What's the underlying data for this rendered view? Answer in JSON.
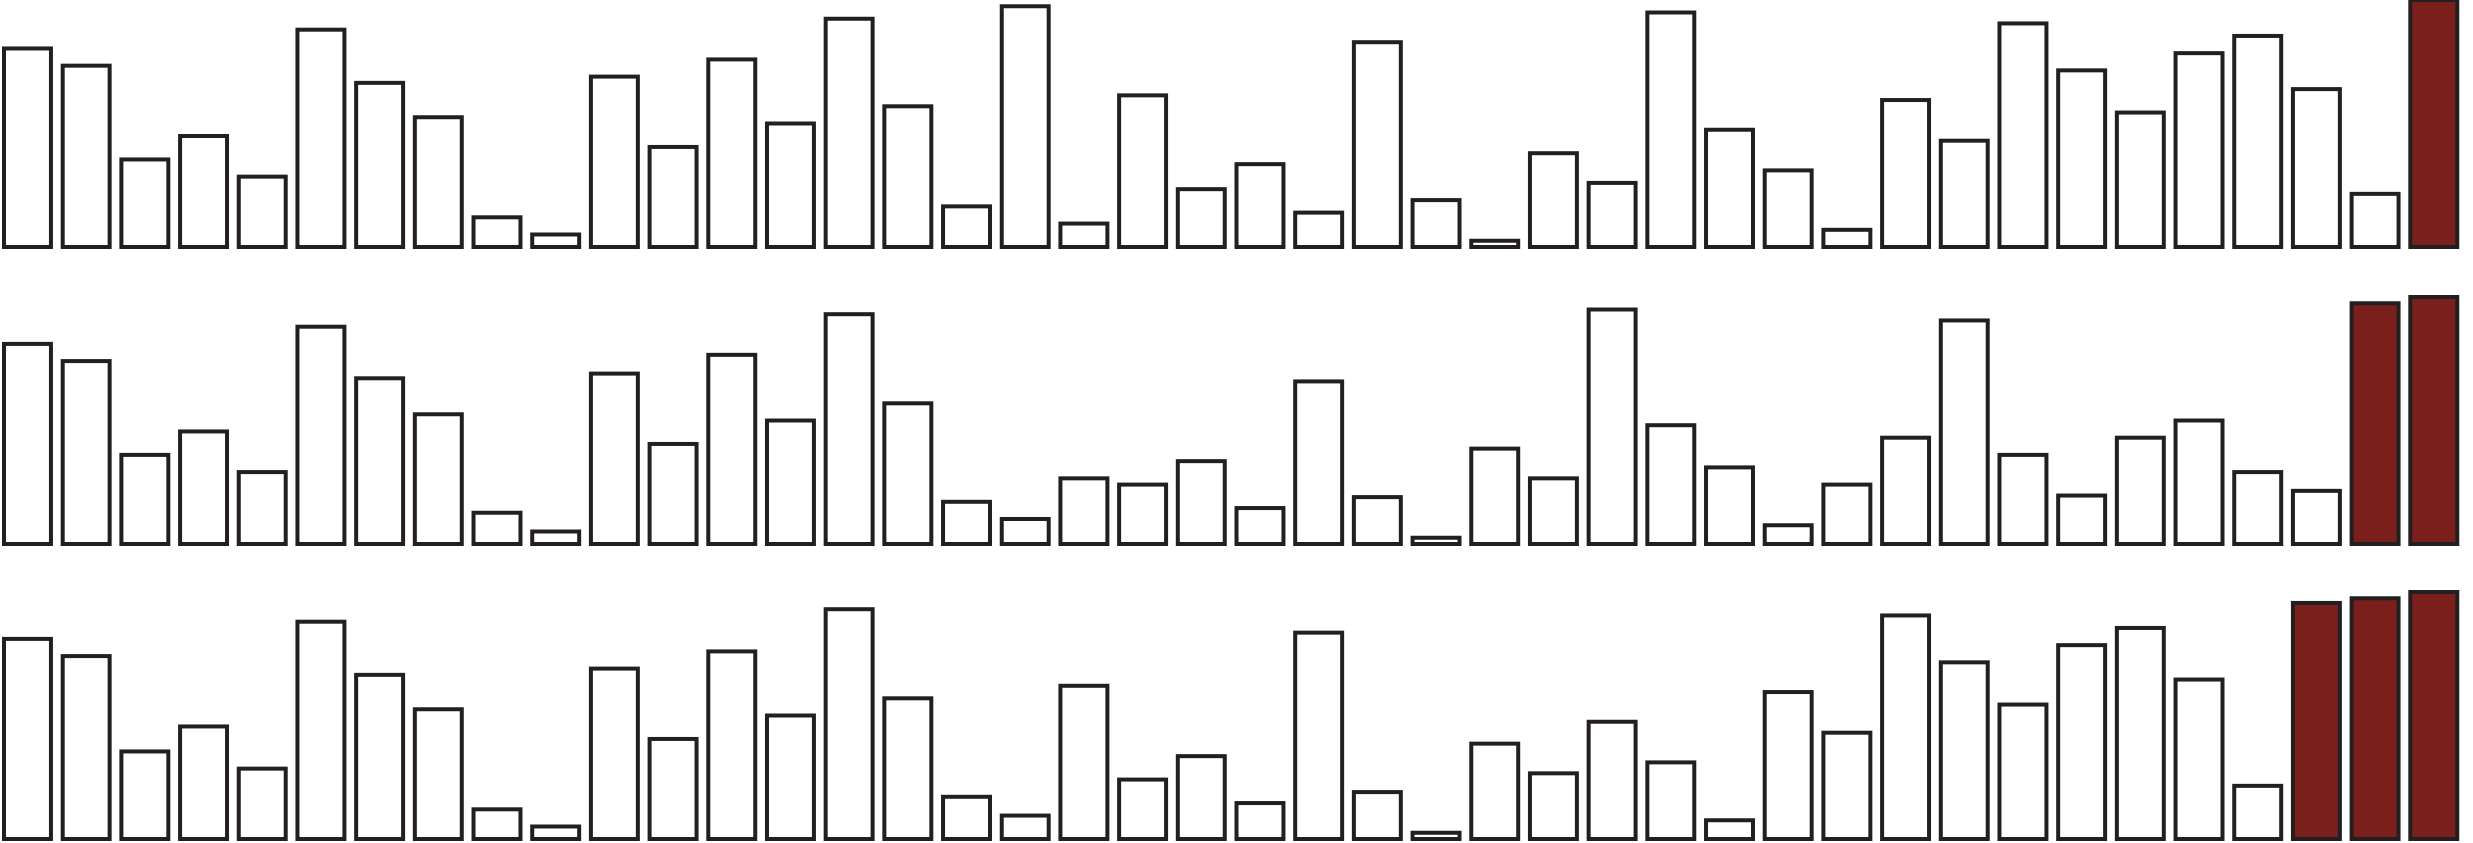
{
  "chart_data": [
    {
      "type": "bar",
      "values": [
        127,
        116,
        56,
        71,
        45,
        139,
        105,
        83,
        19,
        8,
        109,
        64,
        120,
        79,
        146,
        90,
        26,
        154,
        15,
        97,
        37,
        53,
        22,
        131,
        30,
        4,
        60,
        41,
        150,
        75,
        49,
        11,
        94,
        68,
        143,
        113,
        86,
        124,
        135,
        101,
        34,
        158
      ],
      "colors": [
        "#ffffff",
        "#ffffff",
        "#ffffff",
        "#ffffff",
        "#ffffff",
        "#ffffff",
        "#ffffff",
        "#ffffff",
        "#ffffff",
        "#ffffff",
        "#ffffff",
        "#ffffff",
        "#ffffff",
        "#ffffff",
        "#ffffff",
        "#ffffff",
        "#ffffff",
        "#ffffff",
        "#ffffff",
        "#ffffff",
        "#ffffff",
        "#ffffff",
        "#ffffff",
        "#ffffff",
        "#ffffff",
        "#ffffff",
        "#ffffff",
        "#ffffff",
        "#ffffff",
        "#ffffff",
        "#ffffff",
        "#ffffff",
        "#ffffff",
        "#ffffff",
        "#ffffff",
        "#ffffff",
        "#ffffff",
        "#ffffff",
        "#ffffff",
        "#ffffff",
        "#ffffff",
        "#7a1f1c"
      ],
      "ylim": [
        0,
        158
      ]
    },
    {
      "type": "bar",
      "values": [
        128,
        117,
        57,
        72,
        46,
        139,
        106,
        83,
        20,
        8,
        109,
        64,
        121,
        79,
        147,
        90,
        27,
        16,
        42,
        38,
        53,
        23,
        104,
        30,
        4,
        61,
        42,
        150,
        76,
        49,
        12,
        38,
        68,
        143,
        57,
        31,
        68,
        79,
        46,
        34,
        154,
        158
      ],
      "colors": [
        "#ffffff",
        "#ffffff",
        "#ffffff",
        "#ffffff",
        "#ffffff",
        "#ffffff",
        "#ffffff",
        "#ffffff",
        "#ffffff",
        "#ffffff",
        "#ffffff",
        "#ffffff",
        "#ffffff",
        "#ffffff",
        "#ffffff",
        "#ffffff",
        "#ffffff",
        "#ffffff",
        "#ffffff",
        "#ffffff",
        "#ffffff",
        "#ffffff",
        "#ffffff",
        "#ffffff",
        "#ffffff",
        "#ffffff",
        "#ffffff",
        "#ffffff",
        "#ffffff",
        "#ffffff",
        "#ffffff",
        "#ffffff",
        "#ffffff",
        "#ffffff",
        "#ffffff",
        "#ffffff",
        "#ffffff",
        "#ffffff",
        "#ffffff",
        "#ffffff",
        "#7a1f1c",
        "#7a1f1c"
      ],
      "ylim": [
        0,
        158
      ]
    },
    {
      "type": "bar",
      "values": [
        128,
        117,
        56,
        72,
        45,
        139,
        105,
        83,
        19,
        8,
        109,
        64,
        120,
        79,
        147,
        90,
        27,
        15,
        98,
        38,
        53,
        23,
        132,
        30,
        4,
        61,
        42,
        75,
        49,
        12,
        94,
        68,
        143,
        113,
        86,
        124,
        135,
        102,
        34,
        151,
        154,
        158
      ],
      "colors": [
        "#ffffff",
        "#ffffff",
        "#ffffff",
        "#ffffff",
        "#ffffff",
        "#ffffff",
        "#ffffff",
        "#ffffff",
        "#ffffff",
        "#ffffff",
        "#ffffff",
        "#ffffff",
        "#ffffff",
        "#ffffff",
        "#ffffff",
        "#ffffff",
        "#ffffff",
        "#ffffff",
        "#ffffff",
        "#ffffff",
        "#ffffff",
        "#ffffff",
        "#ffffff",
        "#ffffff",
        "#ffffff",
        "#ffffff",
        "#ffffff",
        "#ffffff",
        "#ffffff",
        "#ffffff",
        "#ffffff",
        "#ffffff",
        "#ffffff",
        "#ffffff",
        "#ffffff",
        "#ffffff",
        "#ffffff",
        "#ffffff",
        "#ffffff",
        "#7a1f1c",
        "#7a1f1c",
        "#7a1f1c"
      ],
      "ylim": [
        0,
        158
      ]
    }
  ]
}
